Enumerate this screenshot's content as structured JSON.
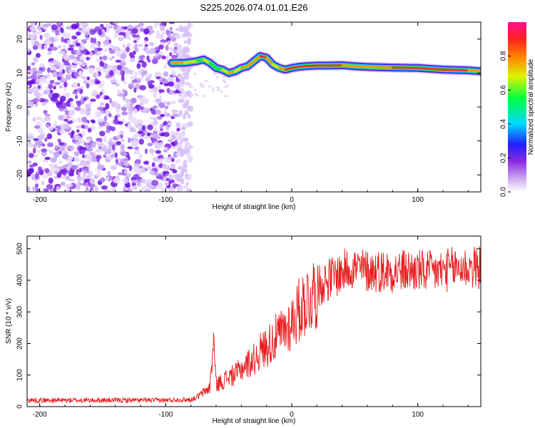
{
  "title": "S225.2026.074.01.01.E26",
  "colors": {
    "snr_line": "#e8191b",
    "axis": "#000000",
    "background": "#ffffff"
  },
  "chart_data": [
    {
      "type": "heatmap",
      "title": "",
      "xlabel": "Height of straight line (km)",
      "ylabel": "Frequency (Hz)",
      "xlim": [
        -210,
        150
      ],
      "ylim": [
        -25,
        25
      ],
      "xticks": [
        -200,
        -100,
        0,
        100
      ],
      "yticks": [
        -20,
        -10,
        0,
        10,
        20
      ],
      "colorbar": {
        "label": "Normalized spectral amplitude",
        "range": [
          0,
          1
        ],
        "ticks": [
          "0.0",
          "0.2",
          "0.4",
          "0.6",
          "0.8"
        ]
      },
      "noise_region_x": [
        -210,
        -80
      ],
      "ridge": {
        "x": [
          -95,
          -85,
          -75,
          -70,
          -65,
          -60,
          -55,
          -50,
          -45,
          -40,
          -35,
          -30,
          -25,
          -20,
          -15,
          -10,
          -5,
          0,
          5,
          10,
          20,
          30,
          40,
          50,
          60,
          80,
          100,
          120,
          140,
          150
        ],
        "freq": [
          13.0,
          13.0,
          13.5,
          14.0,
          13.0,
          11.5,
          11.0,
          10.0,
          10.5,
          11.5,
          12.0,
          13.5,
          15.0,
          14.5,
          12.5,
          11.5,
          11.0,
          11.5,
          11.8,
          12.0,
          12.2,
          12.2,
          12.3,
          12.0,
          11.8,
          11.6,
          11.5,
          11.0,
          10.8,
          10.5
        ],
        "amplitude": [
          0.7,
          0.6,
          0.5,
          0.6,
          0.5,
          0.5,
          0.6,
          0.8,
          0.6,
          0.7,
          0.8,
          0.7,
          0.9,
          0.7,
          0.6,
          0.8,
          0.9,
          0.85,
          0.9,
          0.9,
          0.85,
          0.85,
          0.8,
          0.7,
          0.75,
          0.95,
          0.85,
          0.9,
          0.8,
          0.7
        ]
      }
    },
    {
      "type": "line",
      "title": "",
      "xlabel": "Height of straight line (km)",
      "ylabel": "SNR (10 * v/v)",
      "xlim": [
        -210,
        150
      ],
      "ylim": [
        0,
        540
      ],
      "xticks": [
        -200,
        -100,
        0,
        100
      ],
      "yticks": [
        0,
        100,
        200,
        300,
        400,
        500
      ],
      "series": [
        {
          "name": "SNR",
          "x": [
            -210,
            -180,
            -150,
            -120,
            -100,
            -90,
            -80,
            -75,
            -70,
            -65,
            -62,
            -60,
            -55,
            -50,
            -45,
            -40,
            -35,
            -30,
            -25,
            -20,
            -15,
            -10,
            -5,
            0,
            5,
            10,
            15,
            20,
            25,
            30,
            35,
            40,
            45,
            50,
            60,
            70,
            80,
            90,
            100,
            110,
            120,
            130,
            140,
            150
          ],
          "y": [
            20,
            20,
            20,
            20,
            20,
            22,
            22,
            30,
            45,
            60,
            210,
            70,
            80,
            95,
            100,
            120,
            135,
            150,
            175,
            190,
            210,
            225,
            245,
            270,
            300,
            330,
            350,
            375,
            395,
            405,
            415,
            425,
            440,
            440,
            430,
            430,
            430,
            430,
            430,
            425,
            430,
            440,
            440,
            440
          ]
        }
      ]
    }
  ]
}
